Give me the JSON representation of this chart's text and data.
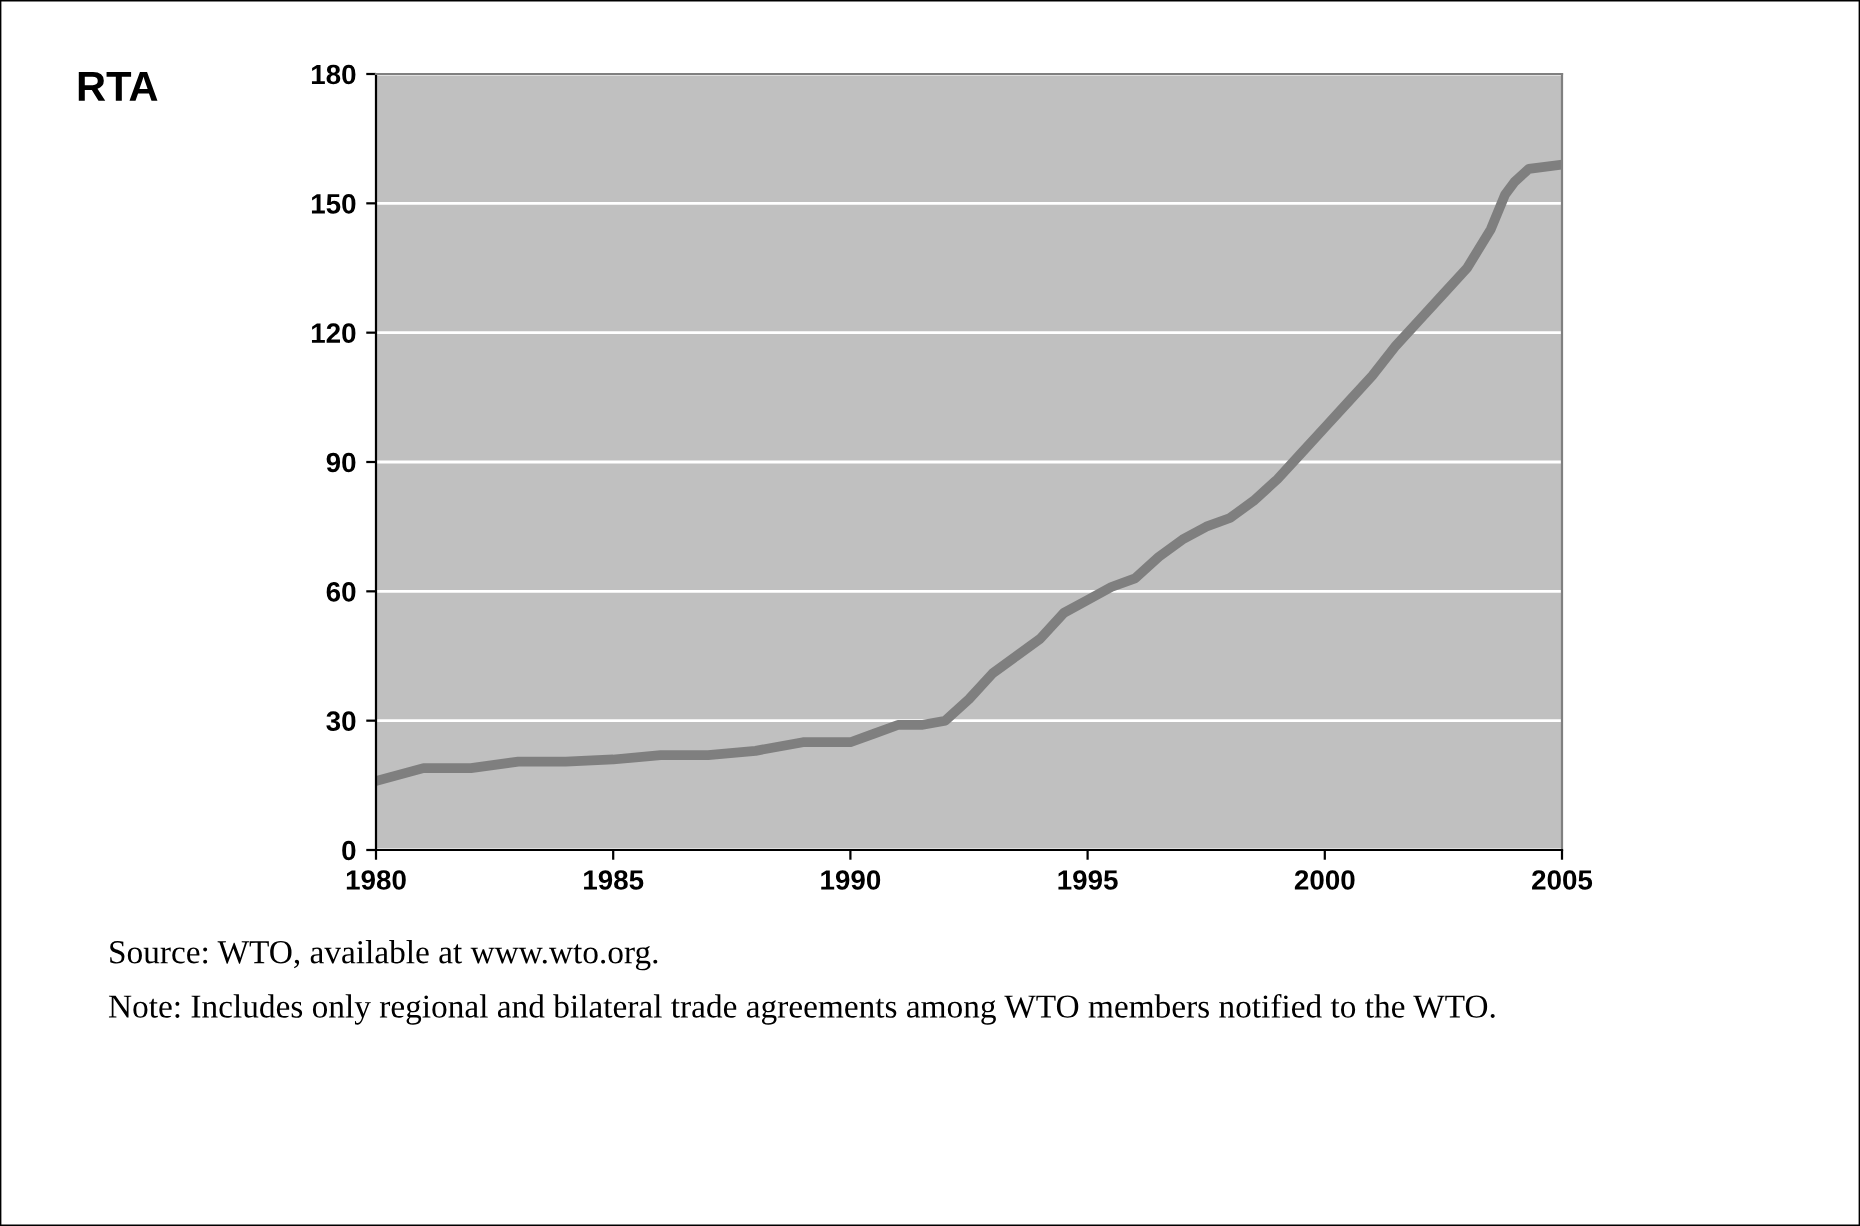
{
  "chart_data": {
    "type": "line",
    "ylabel": "RTA",
    "x": [
      1980,
      1981,
      1982,
      1983,
      1984,
      1985,
      1986,
      1987,
      1988,
      1989,
      1990,
      1990.5,
      1991,
      1991.5,
      1992,
      1992.5,
      1993,
      1993.5,
      1994,
      1994.5,
      1995,
      1995.5,
      1996,
      1996.5,
      1997,
      1997.5,
      1998,
      1998.5,
      1999,
      1999.5,
      2000,
      2000.5,
      2001,
      2001.5,
      2002,
      2002.5,
      2003,
      2003.5,
      2003.8,
      2004,
      2004.3,
      2005
    ],
    "series": [
      {
        "color": "#7f7f7f",
        "values": [
          16,
          19,
          19,
          20.5,
          20.5,
          21,
          22,
          22,
          23,
          25,
          25,
          27,
          29,
          29,
          30,
          35,
          41,
          45,
          49,
          55,
          58,
          61,
          63,
          68,
          72,
          75,
          77,
          81,
          86,
          92,
          98,
          104,
          110,
          117,
          123,
          129,
          135,
          144,
          152,
          155,
          158,
          159
        ]
      }
    ],
    "xlim": [
      1980,
      2005
    ],
    "xticks": [
      1980,
      1985,
      1990,
      1995,
      2000,
      2005
    ],
    "ylim": [
      0,
      180
    ],
    "yticks": [
      0,
      30,
      60,
      90,
      120,
      150,
      180
    ],
    "grid": "y",
    "legend": false,
    "marker": "none",
    "line_style": "solid",
    "annotations": [
      "Source: WTO, available at www.wto.org.",
      "Note: Includes only regional and bilateral trade agreements among WTO members notified to the WTO."
    ]
  }
}
